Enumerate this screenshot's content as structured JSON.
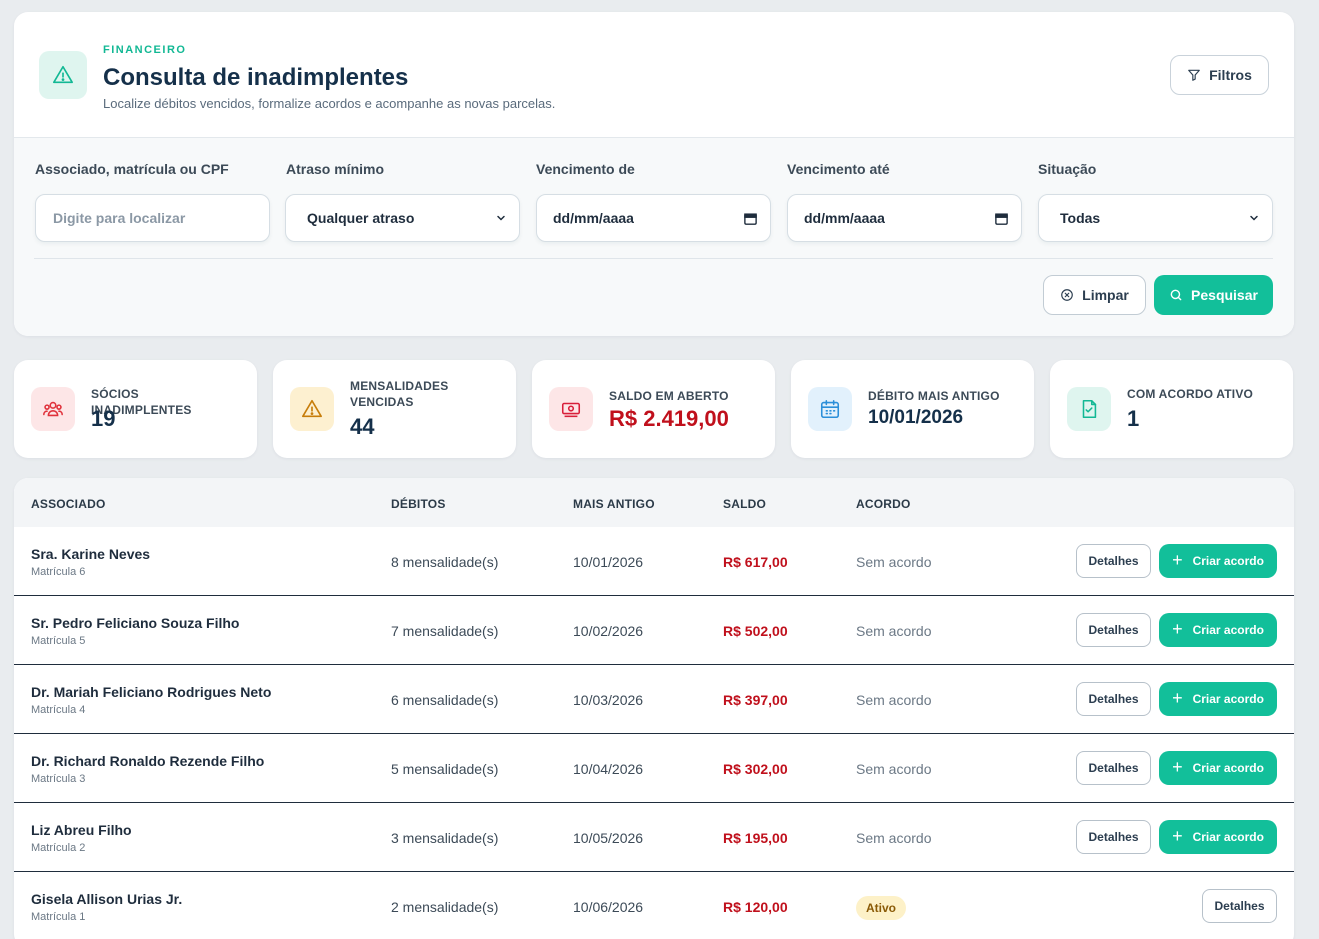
{
  "header": {
    "eyebrow": "FINANCEIRO",
    "title": "Consulta de inadimplentes",
    "subtitle": "Localize débitos vencidos, formalize acordos e acompanhe as novas parcelas.",
    "filters_button": "Filtros",
    "icon": "warning-triangle-icon"
  },
  "filters": {
    "search": {
      "label": "Associado, matrícula ou CPF",
      "placeholder": "Digite para localizar",
      "value": ""
    },
    "delay": {
      "label": "Atraso mínimo",
      "value": "Qualquer atraso"
    },
    "due_from": {
      "label": "Vencimento de",
      "value": "dd/mm/aaaa"
    },
    "due_to": {
      "label": "Vencimento até",
      "value": "dd/mm/aaaa"
    },
    "status": {
      "label": "Situação",
      "value": "Todas"
    },
    "clear_label": "Limpar",
    "search_label": "Pesquisar"
  },
  "stats": [
    {
      "label": "SÓCIOS INADIMPLENTES",
      "value": "19",
      "icon": "users-icon",
      "color": "#e0323c",
      "bg": "#fde6e7"
    },
    {
      "label": "MENSALIDADES VENCIDAS",
      "value": "44",
      "icon": "warning-icon",
      "color": "#c77d0a",
      "bg": "#fdf0d0"
    },
    {
      "label": "SALDO EM ABERTO",
      "value": "R$ 2.419,00",
      "icon": "money-icon",
      "color": "#d81f3a",
      "bg": "#fde6e7"
    },
    {
      "label": "DÉBITO MAIS ANTIGO",
      "value": "10/01/2026",
      "icon": "calendar-icon",
      "color": "#2b8fd9",
      "bg": "#e2f1fc"
    },
    {
      "label": "COM ACORDO ATIVO",
      "value": "1",
      "icon": "document-check-icon",
      "color": "#12b894",
      "bg": "#dff5ef"
    }
  ],
  "table": {
    "columns": [
      "ASSOCIADO",
      "DÉBITOS",
      "MAIS ANTIGO",
      "SALDO",
      "ACORDO"
    ],
    "details_label": "Detalhes",
    "create_label": "Criar acordo",
    "rows": [
      {
        "name": "Sra. Karine Neves",
        "registration": "Matrícula 6",
        "debts": "8 mensalidade(s)",
        "oldest": "10/01/2026",
        "balance": "R$ 617,00",
        "agreement": "Sem acordo"
      },
      {
        "name": "Sr. Pedro Feliciano Souza Filho",
        "registration": "Matrícula 5",
        "debts": "7 mensalidade(s)",
        "oldest": "10/02/2026",
        "balance": "R$ 502,00",
        "agreement": "Sem acordo"
      },
      {
        "name": "Dr. Mariah Feliciano Rodrigues Neto",
        "registration": "Matrícula 4",
        "debts": "6 mensalidade(s)",
        "oldest": "10/03/2026",
        "balance": "R$ 397,00",
        "agreement": "Sem acordo"
      },
      {
        "name": "Dr. Richard Ronaldo Rezende Filho",
        "registration": "Matrícula 3",
        "debts": "5 mensalidade(s)",
        "oldest": "10/04/2026",
        "balance": "R$ 302,00",
        "agreement": "Sem acordo"
      },
      {
        "name": "Liz Abreu Filho",
        "registration": "Matrícula 2",
        "debts": "3 mensalidade(s)",
        "oldest": "10/05/2026",
        "balance": "R$ 195,00",
        "agreement": "Sem acordo"
      },
      {
        "name": "Gisela Allison Urias Jr.",
        "registration": "Matrícula 1",
        "debts": "2 mensalidade(s)",
        "oldest": "10/06/2026",
        "balance": "R$ 120,00",
        "agreement": "Ativo"
      }
    ]
  }
}
